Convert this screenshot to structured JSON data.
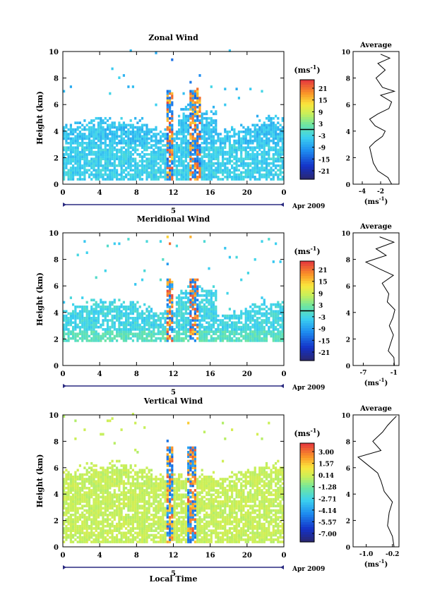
{
  "chart_data": [
    {
      "type": "heatmap",
      "title": "Zonal Wind",
      "ylabel": "Height (km)",
      "xlabel": "",
      "x_ticks": [
        "0",
        "4",
        "8",
        "12",
        "16",
        "20",
        "0"
      ],
      "y_ticks": [
        "0",
        "2",
        "4",
        "6",
        "8",
        "10"
      ],
      "xlim": [
        0,
        24
      ],
      "ylim": [
        0,
        10
      ],
      "date_day": "5",
      "date_label": "Apr 2009",
      "colorbar": {
        "unit_base": "(ms",
        "unit_exp": "-1",
        "unit_close": ")",
        "ticks": [
          "21",
          "15",
          "9",
          "3",
          "-3",
          "-9",
          "-15",
          "-21"
        ],
        "zero_line_index": 4
      },
      "heat": {
        "mean": -2.2,
        "layers": [
          4.2,
          5.5,
          0.3
        ],
        "core_hours": [
          11.6,
          14.2
        ]
      },
      "profile": {
        "title": "Average",
        "xlabel_base": "(ms",
        "xlabel_exp": "-1",
        "xlabel_close": ")",
        "x_ticks": [
          "-4",
          "-2"
        ],
        "xlim": [
          -5,
          0
        ],
        "y_ticks": [
          "0",
          "2",
          "4",
          "6",
          "8",
          "10"
        ],
        "points": [
          [
            -0.8,
            0
          ],
          [
            -1.2,
            0.5
          ],
          [
            -2.3,
            1.0
          ],
          [
            -2.8,
            1.6
          ],
          [
            -3.0,
            2.2
          ],
          [
            -3.2,
            2.8
          ],
          [
            -2.6,
            3.2
          ],
          [
            -1.8,
            3.6
          ],
          [
            -1.5,
            4.0
          ],
          [
            -2.6,
            4.4
          ],
          [
            -3.2,
            4.9
          ],
          [
            -2.3,
            5.3
          ],
          [
            -1.1,
            5.7
          ],
          [
            -0.8,
            6.2
          ],
          [
            -2.0,
            6.7
          ],
          [
            -0.5,
            7.0
          ],
          [
            -1.8,
            7.3
          ],
          [
            -2.5,
            8.0
          ],
          [
            -1.5,
            8.6
          ],
          [
            -2.3,
            9.1
          ],
          [
            -1.0,
            9.5
          ],
          [
            -2.0,
            9.8
          ]
        ]
      }
    },
    {
      "type": "heatmap",
      "title": "Meridional Wind",
      "ylabel": "Height (km)",
      "xlabel": "",
      "x_ticks": [
        "0",
        "4",
        "8",
        "12",
        "16",
        "20",
        "0"
      ],
      "y_ticks": [
        "0",
        "2",
        "4",
        "6",
        "8",
        "10"
      ],
      "xlim": [
        0,
        24
      ],
      "ylim": [
        0,
        10
      ],
      "date_day": "5",
      "date_label": "Apr 2009",
      "colorbar": {
        "unit_base": "(ms",
        "unit_exp": "-1",
        "unit_close": ")",
        "ticks": [
          "21",
          "15",
          "9",
          "3",
          "-3",
          "-9",
          "-15",
          "-21"
        ],
        "zero_line_index": 4
      },
      "heat": {
        "mean": -2.2,
        "layers": [
          4.1,
          5.0,
          1.8
        ],
        "core_hours": [
          11.4,
          14.1
        ]
      },
      "profile": {
        "title": "Average",
        "xlabel_base": "(ms",
        "xlabel_exp": "-1",
        "xlabel_close": ")",
        "x_ticks": [
          "-7",
          "-1"
        ],
        "xlim": [
          -9,
          0
        ],
        "y_ticks": [
          "0",
          "2",
          "4",
          "6",
          "8",
          "10"
        ],
        "points": [
          [
            -0.9,
            0
          ],
          [
            -1.0,
            0.6
          ],
          [
            -2.1,
            1.1
          ],
          [
            -1.6,
            1.7
          ],
          [
            -1.1,
            2.3
          ],
          [
            -1.9,
            3.0
          ],
          [
            -1.2,
            3.6
          ],
          [
            -0.8,
            4.2
          ],
          [
            -2.3,
            4.8
          ],
          [
            -2.0,
            5.4
          ],
          [
            -3.3,
            6.2
          ],
          [
            -1.1,
            6.8
          ],
          [
            -3.9,
            7.3
          ],
          [
            -6.5,
            7.8
          ],
          [
            -2.5,
            8.3
          ],
          [
            -4.5,
            8.8
          ],
          [
            -1.0,
            9.3
          ],
          [
            -3.8,
            9.7
          ]
        ]
      }
    },
    {
      "type": "heatmap",
      "title": "Vertical Wind",
      "ylabel": "Height (km)",
      "xlabel": "Local Time",
      "x_ticks": [
        "0",
        "4",
        "8",
        "12",
        "16",
        "20",
        "0"
      ],
      "y_ticks": [
        "0",
        "2",
        "4",
        "6",
        "8",
        "10"
      ],
      "xlim": [
        0,
        24
      ],
      "ylim": [
        0,
        10
      ],
      "date_day": "5",
      "date_label": "Apr 2009",
      "colorbar": {
        "unit_base": "(ms",
        "unit_exp": "-1",
        "unit_close": ")",
        "ticks": [
          "3.00",
          "1.57",
          "0.14",
          "-1.28",
          "-2.71",
          "-4.14",
          "-5.57",
          "-7.00"
        ],
        "zero_line_index": -1
      },
      "heat": {
        "mean": 0.6,
        "layers": [
          5.5,
          6.0,
          0.3
        ],
        "core_hours": [
          11.6,
          13.9
        ]
      },
      "profile": {
        "title": "Average",
        "xlabel_base": "(ms",
        "xlabel_exp": "-1",
        "xlabel_close": ")",
        "x_ticks": [
          "-1.0",
          "-0.2"
        ],
        "xlim": [
          -1.4,
          0
        ],
        "y_ticks": [
          "0",
          "2",
          "4",
          "6",
          "8",
          "10"
        ],
        "points": [
          [
            -0.15,
            0
          ],
          [
            -0.2,
            0.8
          ],
          [
            -0.35,
            1.6
          ],
          [
            -0.3,
            2.6
          ],
          [
            -0.2,
            3.4
          ],
          [
            -0.45,
            4.2
          ],
          [
            -0.55,
            5.0
          ],
          [
            -0.65,
            5.6
          ],
          [
            -1.05,
            6.4
          ],
          [
            -1.25,
            6.8
          ],
          [
            -0.55,
            7.3
          ],
          [
            -0.8,
            8.0
          ],
          [
            -0.5,
            8.7
          ],
          [
            -0.35,
            9.2
          ],
          [
            -0.2,
            9.6
          ],
          [
            -0.08,
            9.9
          ]
        ]
      }
    }
  ]
}
